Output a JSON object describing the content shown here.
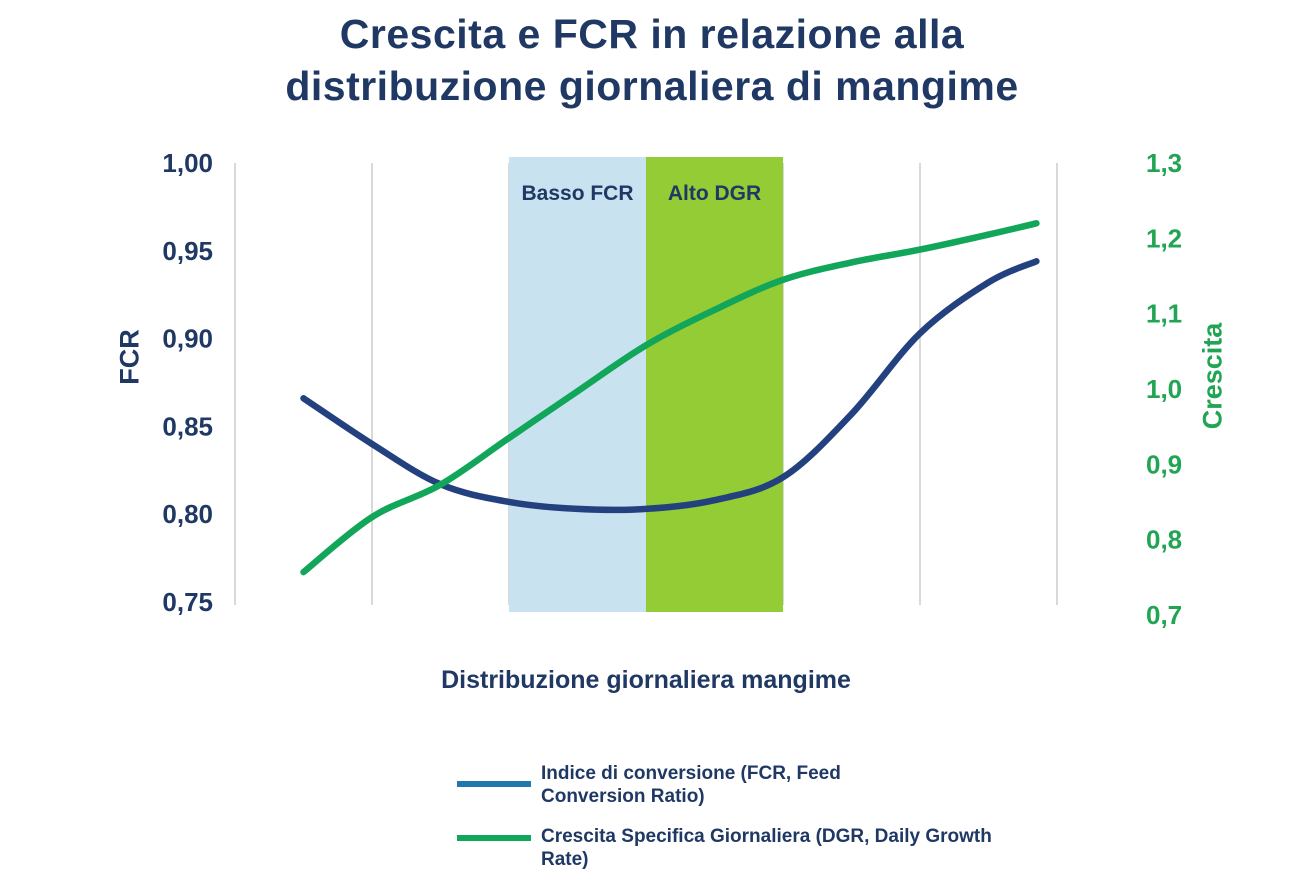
{
  "title": "Crescita e FCR in relazione alla\ndistribuzione giornaliera di mangime",
  "colors": {
    "navy_text": "#1f3864",
    "green_text": "#21a453",
    "grid": "#d9d9d9",
    "fcr_curve": "#24417f",
    "dgr_curve": "#12a65b",
    "band_blue": "#c8e3ef",
    "band_green": "#94cc35",
    "legend_fcr_line": "#1d79ae"
  },
  "legend": {
    "items": [
      {
        "label": "Indice di conversione (FCR, Feed\nConversion Ratio)",
        "color": "#1d79ae"
      },
      {
        "label": "Crescita Specifica Giornaliera (DGR, Daily Growth Rate)",
        "color": "#12a65b"
      }
    ]
  },
  "chart_data": {
    "type": "line",
    "title": "Crescita e FCR in relazione alla distribuzione giornaliera di mangime",
    "xlabel": "Distribuzione giornaliera mangime",
    "left_ylabel": "FCR",
    "right_ylabel": "Crescita",
    "left_ylim": [
      0.75,
      1.0
    ],
    "right_ylim": [
      0.7,
      1.3
    ],
    "x_range": [
      0,
      6
    ],
    "x_tick_labels_visible": false,
    "gridlines": "vertical-only",
    "legend_position": "bottom",
    "left_yticks": [
      {
        "v": 1.0,
        "label": "1,00"
      },
      {
        "v": 0.95,
        "label": "0,95"
      },
      {
        "v": 0.9,
        "label": "0,90"
      },
      {
        "v": 0.85,
        "label": "0,85"
      },
      {
        "v": 0.8,
        "label": "0,80"
      },
      {
        "v": 0.75,
        "label": "0,75"
      }
    ],
    "right_yticks": [
      {
        "v": 1.3,
        "label": "1,3"
      },
      {
        "v": 1.2,
        "label": "1,2"
      },
      {
        "v": 1.1,
        "label": "1,1"
      },
      {
        "v": 1.0,
        "label": "1,0"
      },
      {
        "v": 0.9,
        "label": "0,9"
      },
      {
        "v": 0.8,
        "label": "0,8"
      },
      {
        "v": 0.7,
        "label": "0,7"
      }
    ],
    "bands": [
      {
        "label": "Basso FCR",
        "x_start": 2,
        "x_end": 3,
        "color": "#c8e3ef",
        "label_color": "#1f3864"
      },
      {
        "label": "Alto DGR",
        "x_start": 3,
        "x_end": 4,
        "color": "#94cc35",
        "label_color": "#1f3864"
      }
    ],
    "series": [
      {
        "name": "Indice di conversione (FCR, Feed Conversion Ratio)",
        "axis": "left",
        "color": "#24417f",
        "x": [
          0.5,
          1.0,
          1.5,
          2.0,
          2.5,
          3.0,
          3.5,
          4.0,
          4.5,
          5.0,
          5.5,
          5.85
        ],
        "values": [
          0.866,
          0.84,
          0.817,
          0.807,
          0.803,
          0.803,
          0.808,
          0.821,
          0.857,
          0.903,
          0.932,
          0.944
        ]
      },
      {
        "name": "Crescita Specifica Giornaliera (DGR, Daily Growth Rate)",
        "axis": "right",
        "color": "#12a65b",
        "x": [
          0.5,
          1.0,
          1.5,
          2.0,
          2.5,
          3.0,
          3.5,
          4.0,
          4.5,
          5.0,
          5.5,
          5.85
        ],
        "values": [
          0.757,
          0.83,
          0.873,
          0.935,
          0.997,
          1.058,
          1.105,
          1.145,
          1.168,
          1.185,
          1.205,
          1.22
        ]
      }
    ]
  }
}
